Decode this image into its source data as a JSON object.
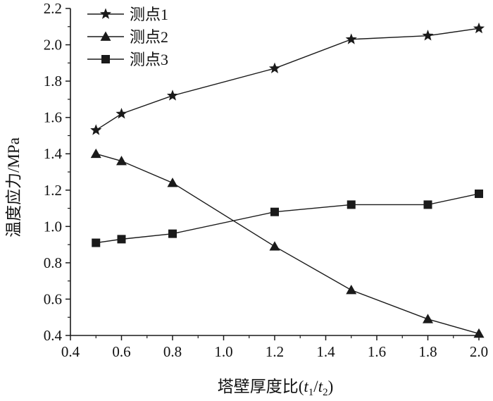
{
  "chart_data": {
    "type": "line",
    "xlabel": "塔壁厚度比(t1/t2)",
    "xlabel_parts": {
      "prefix": "塔壁厚度比(",
      "t": "t",
      "sub1": "1",
      "slash": "/",
      "sub2": "2",
      "suffix": ")"
    },
    "ylabel": "温度应力/MPa",
    "xlim": [
      0.4,
      2.0
    ],
    "ylim": [
      0.4,
      2.2
    ],
    "xticks": [
      "0.4",
      "0.6",
      "0.8",
      "1.0",
      "1.2",
      "1.4",
      "1.6",
      "1.8",
      "2.0"
    ],
    "yticks": [
      "0.4",
      "0.6",
      "0.8",
      "1.0",
      "1.2",
      "1.4",
      "1.6",
      "1.8",
      "2.0",
      "2.2"
    ],
    "grid": false,
    "legend_position": "top-left",
    "x": [
      0.5,
      0.6,
      0.8,
      1.2,
      1.5,
      1.8,
      2.0
    ],
    "series": [
      {
        "name": "测点1",
        "marker": "star",
        "values": [
          1.53,
          1.62,
          1.72,
          1.87,
          2.03,
          2.05,
          2.09
        ]
      },
      {
        "name": "测点2",
        "marker": "triangle",
        "values": [
          1.4,
          1.36,
          1.24,
          0.89,
          0.65,
          0.49,
          0.41
        ]
      },
      {
        "name": "测点3",
        "marker": "square",
        "values": [
          0.91,
          0.93,
          0.96,
          1.08,
          1.12,
          1.12,
          1.18
        ]
      }
    ],
    "line_color": "#1a1a1a"
  }
}
